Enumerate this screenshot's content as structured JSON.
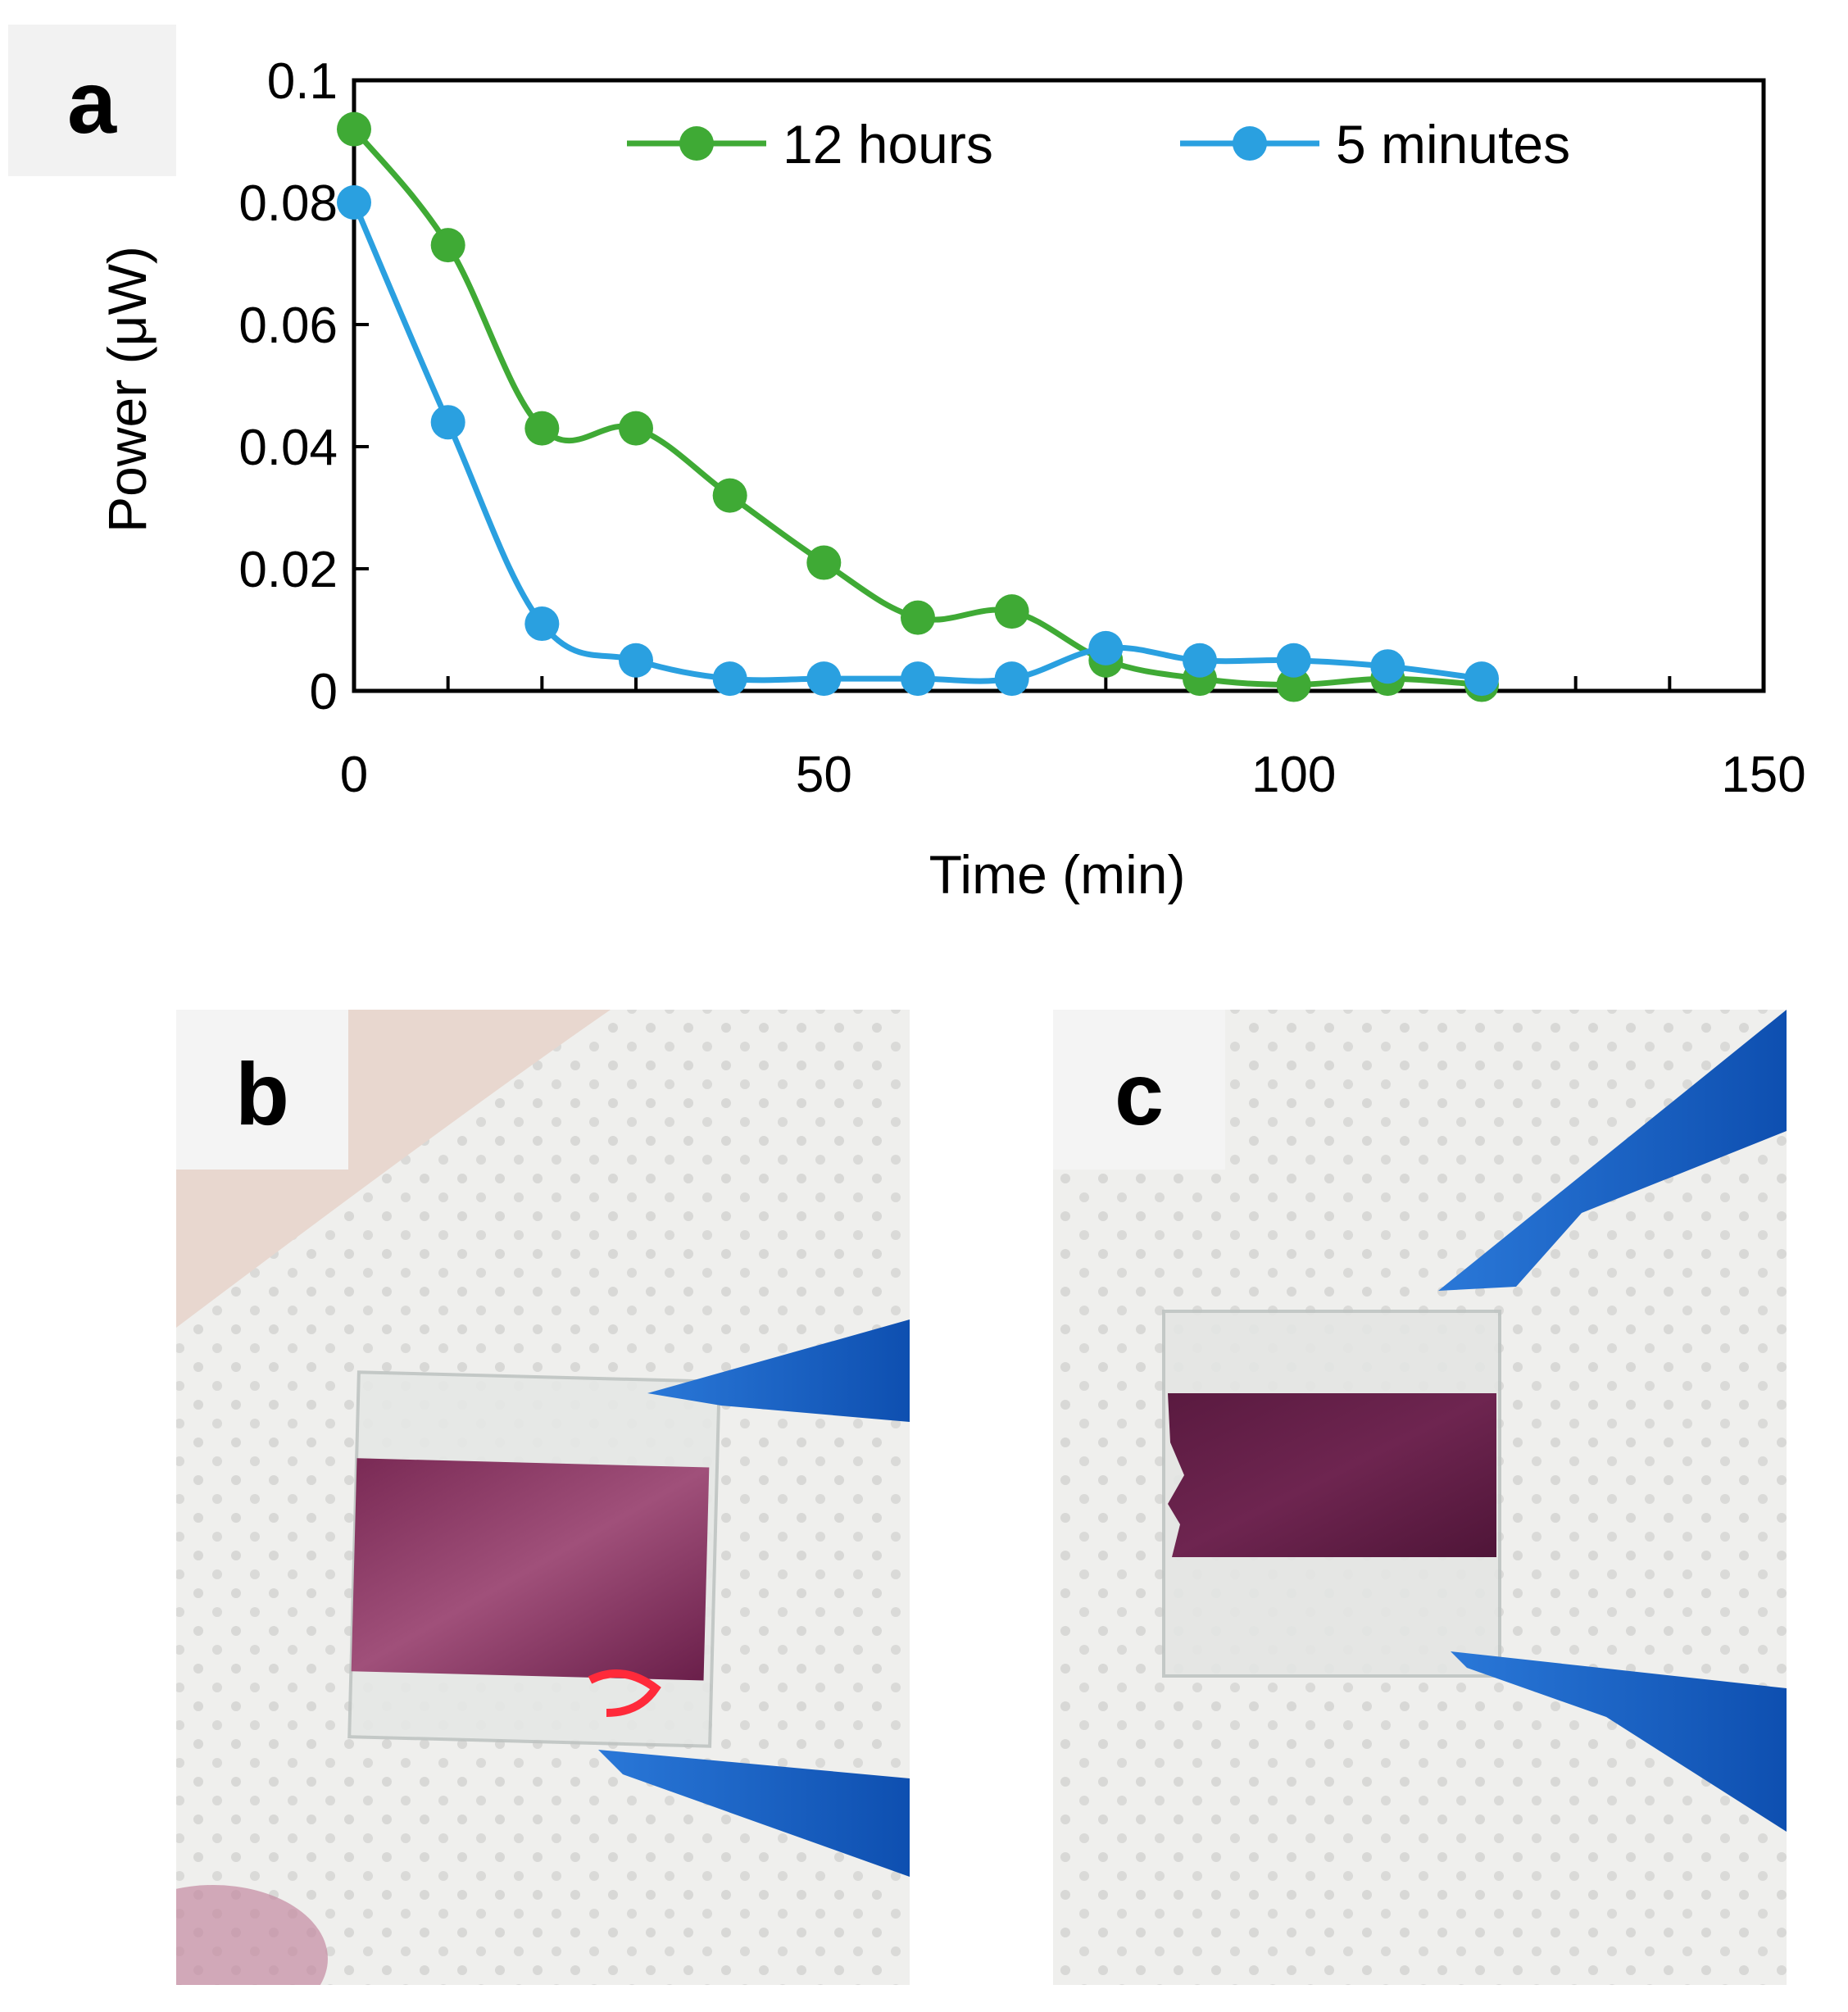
{
  "panels": {
    "a": {
      "label": "a"
    },
    "b": {
      "label": "b"
    },
    "c": {
      "label": "c"
    }
  },
  "colors": {
    "series_12h": "#3faa35",
    "series_5min": "#2aa0e0",
    "dye": "#6a1f4a",
    "tweezer_blue": "#1a64c8",
    "paper": "#eeeeec",
    "frame": "#000000"
  },
  "chart_data": {
    "type": "line",
    "title": "",
    "xlabel": "Time (min)",
    "ylabel": "Power (μW)",
    "xlim": [
      0,
      150
    ],
    "ylim": [
      0,
      0.1
    ],
    "xticks": [
      0,
      50,
      100,
      150
    ],
    "xtick_labels": [
      "0",
      "50",
      "100",
      "150"
    ],
    "yticks": [
      0,
      0.02,
      0.04,
      0.06,
      0.08,
      0.1
    ],
    "ytick_labels": [
      "0",
      "0.02",
      "0.04",
      "0.06",
      "0.08",
      "0.1"
    ],
    "grid": false,
    "legend": "top-right",
    "series": [
      {
        "name": "12 hours",
        "color": "#3faa35",
        "x": [
          0,
          10,
          20,
          30,
          40,
          50,
          60,
          70,
          80,
          90,
          100,
          110,
          120
        ],
        "y": [
          0.092,
          0.073,
          0.043,
          0.043,
          0.032,
          0.021,
          0.012,
          0.013,
          0.005,
          0.002,
          0.001,
          0.002,
          0.001
        ]
      },
      {
        "name": "5 minutes",
        "color": "#2aa0e0",
        "x": [
          0,
          10,
          20,
          30,
          40,
          50,
          60,
          70,
          80,
          90,
          100,
          110,
          120
        ],
        "y": [
          0.08,
          0.044,
          0.011,
          0.005,
          0.002,
          0.002,
          0.002,
          0.002,
          0.007,
          0.005,
          0.005,
          0.004,
          0.002
        ]
      }
    ]
  }
}
